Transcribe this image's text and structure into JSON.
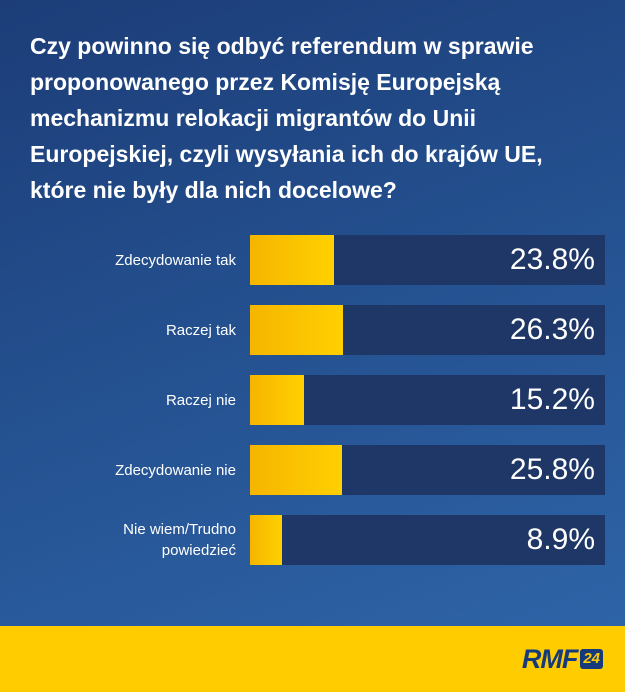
{
  "title": "Czy powinno się odbyć referendum w sprawie proponowanego przez Komisję Europejską mechanizmu relokacji migrantów do Unii Europejskiej, czyli wysyłania ich do krajów UE, które nie były dla nich docelowe?",
  "colors": {
    "bar_fill": "#ffcc00",
    "bar_track": "#1f3766",
    "background": "#24508f",
    "footer": "#ffcc00"
  },
  "chart_data": {
    "type": "bar",
    "orientation": "horizontal",
    "title": "Czy powinno się odbyć referendum w sprawie proponowanego przez Komisję Europejską mechanizmu relokacji migrantów do Unii Europejskiej, czyli wysyłania ich do krajów UE, które nie były dla nich docelowe?",
    "categories": [
      "Zdecydowanie tak",
      "Raczej tak",
      "Raczej nie",
      "Zdecydowanie nie",
      "Nie wiem/Trudno powiedzieć"
    ],
    "values": [
      23.8,
      26.3,
      15.2,
      25.8,
      8.9
    ],
    "value_labels": [
      "23.8%",
      "26.3%",
      "15.2%",
      "25.8%",
      "8.9%"
    ],
    "xlim": [
      0,
      100
    ],
    "unit": "%"
  },
  "footer": {
    "logo_text": "RMF",
    "logo_badge": "24"
  }
}
